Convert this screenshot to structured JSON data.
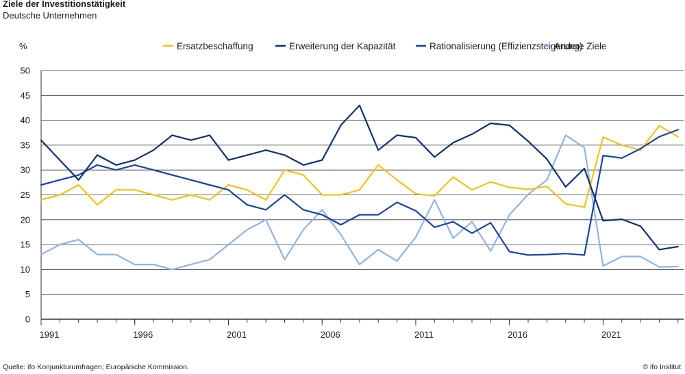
{
  "header": {
    "title": "Ziele der Investitionstätigkeit",
    "subtitle": "Deutsche Unternehmen"
  },
  "footer": {
    "source": "Quelle: ifo Konjunkturumfragen; Europäische Kommission.",
    "credit": "© ifo Institut"
  },
  "colors": {
    "ersatz": "#f2c318",
    "erweiterung": "#10306e",
    "rationalisierung": "#1843a0",
    "andere": "#8fb4e3",
    "grid": "#333333"
  },
  "chart_data": {
    "type": "line",
    "ylabel": "%",
    "ylim": [
      0,
      50
    ],
    "yticks": [
      0,
      5,
      10,
      15,
      20,
      25,
      30,
      35,
      40,
      45,
      50
    ],
    "xlim": [
      1991,
      2025.3
    ],
    "xticks": [
      "1991",
      "1996",
      "2001",
      "2006",
      "2011",
      "2016",
      "2021"
    ],
    "grid": true,
    "legend_position": "top",
    "x": [
      1991,
      1992,
      1993,
      1994,
      1995,
      1996,
      1997,
      1998,
      1999,
      2000,
      2001,
      2002,
      2003,
      2004,
      2005,
      2006,
      2007,
      2008,
      2009,
      2010,
      2011,
      2012,
      2013,
      2014,
      2015,
      2016,
      2017,
      2018,
      2019,
      2020,
      2021,
      2022,
      2023,
      2024,
      2025
    ],
    "series": [
      {
        "name": "Ersatzbeschaffung",
        "color_key": "ersatz",
        "values": [
          24,
          25,
          27,
          23,
          26,
          26,
          25,
          24,
          25,
          24,
          27,
          26,
          24,
          30,
          29,
          25,
          25,
          26,
          31,
          28,
          25.2,
          24.8,
          28.6,
          26,
          27.6,
          26.5,
          26.1,
          26.7,
          23.2,
          22.5,
          36.6,
          35,
          34,
          38.9,
          36.7
        ]
      },
      {
        "name": "Erweiterung der Kapazität",
        "color_key": "erweiterung",
        "values": [
          36,
          32,
          28,
          33,
          31,
          32,
          34,
          37,
          36,
          37,
          32,
          33,
          34,
          33,
          31,
          32,
          39,
          43,
          34,
          37,
          36.5,
          32.6,
          35.5,
          37.2,
          39.4,
          39,
          35.8,
          32.2,
          26.6,
          30.3,
          19.8,
          20.1,
          18.7,
          14,
          14.6
        ]
      },
      {
        "name": "Rationalisierung (Effizienzsteigerung)",
        "color_key": "rationalisierung",
        "values": [
          27,
          28,
          29,
          31,
          30,
          31,
          30,
          29,
          28,
          27,
          26,
          23,
          22,
          25,
          22,
          21,
          19,
          21,
          21,
          23.5,
          21.8,
          18.5,
          19.6,
          17.3,
          19.4,
          13.6,
          12.9,
          13,
          13.2,
          12.9,
          32.9,
          32.4,
          34.3,
          36.7,
          38.1
        ]
      },
      {
        "name": "Andere Ziele",
        "color_key": "andere",
        "values": [
          13,
          15,
          16,
          13,
          13,
          11,
          11,
          10,
          11,
          12,
          15,
          18,
          20,
          12,
          18,
          22,
          17,
          11,
          14,
          11.7,
          16.5,
          24,
          16.3,
          19.6,
          13.7,
          21,
          25.1,
          28,
          37,
          34.5,
          10.7,
          12.6,
          12.6,
          10.5,
          10.6
        ]
      }
    ]
  }
}
